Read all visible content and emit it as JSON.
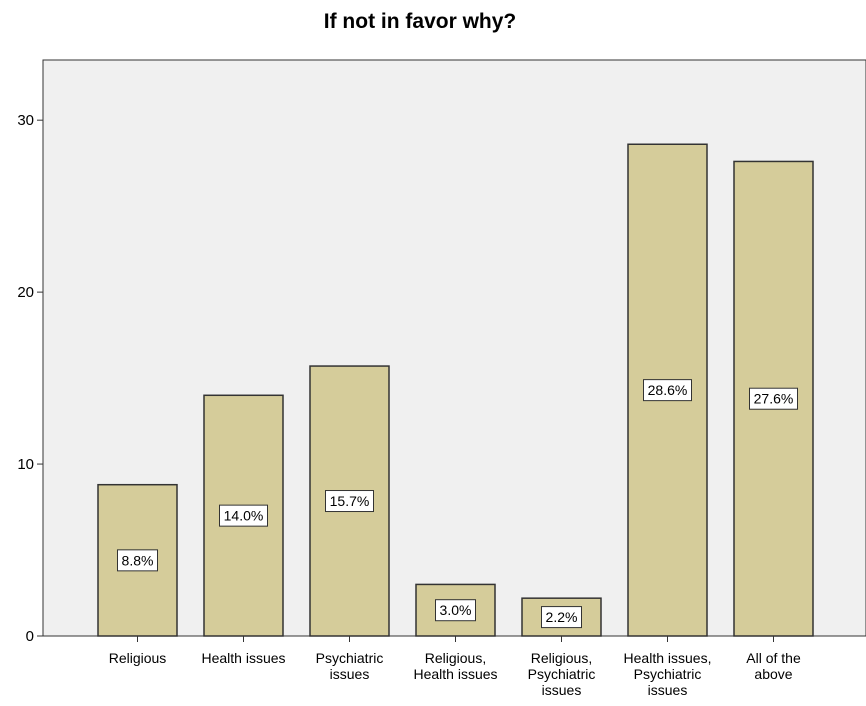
{
  "chart_data": {
    "type": "bar",
    "title": "If not in favor why?",
    "xlabel": "",
    "ylabel": "",
    "categories": [
      [
        "Religious"
      ],
      [
        "Health issues"
      ],
      [
        "Psychiatric",
        "issues"
      ],
      [
        "Religious,",
        "Health issues"
      ],
      [
        "Religious,",
        "Psychiatric",
        "issues"
      ],
      [
        "Health issues,",
        "Psychiatric",
        "issues"
      ],
      [
        "All of the",
        "above"
      ]
    ],
    "values": [
      8.8,
      14.0,
      15.7,
      3.0,
      2.2,
      28.6,
      27.6
    ],
    "data_labels": [
      "8.8%",
      "14.0%",
      "15.7%",
      "3.0%",
      "2.2%",
      "28.6%",
      "27.6%"
    ],
    "yticks": [
      0,
      10,
      20,
      30
    ],
    "ylim": [
      0,
      33.5
    ],
    "grid": false,
    "colors": {
      "bar_fill": "#d5cc9a",
      "bar_stroke": "#333333",
      "plot_background": "#f0f0f0",
      "label_box_fill": "#ffffff"
    }
  }
}
